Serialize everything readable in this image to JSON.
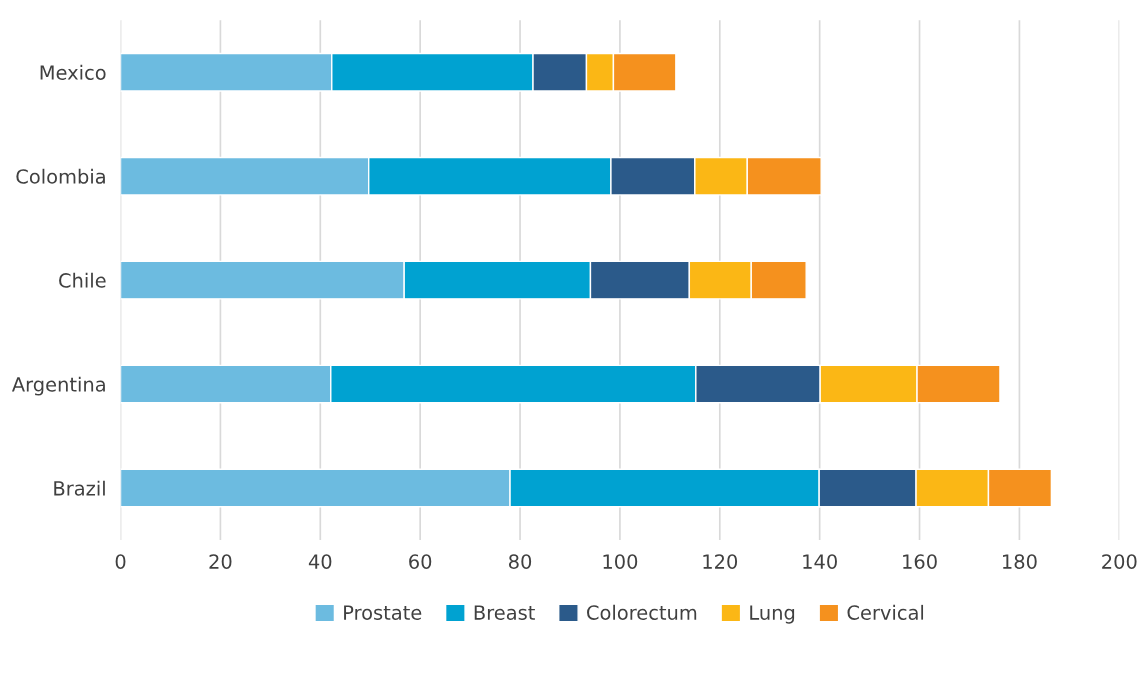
{
  "chart_data": {
    "type": "bar",
    "orientation": "horizontal",
    "stacked": true,
    "categories": [
      "Mexico",
      "Colombia",
      "Chile",
      "Argentina",
      "Brazil"
    ],
    "series": [
      {
        "name": "Prostate",
        "color": "#6cbbe0",
        "values": [
          42.3,
          49.7,
          56.8,
          42.1,
          78.0
        ]
      },
      {
        "name": "Breast",
        "color": "#00a2d1",
        "values": [
          40.3,
          48.5,
          37.3,
          73.1,
          61.9
        ]
      },
      {
        "name": "Colorectum",
        "color": "#2b5a8a",
        "values": [
          10.7,
          16.8,
          19.8,
          24.9,
          19.4
        ]
      },
      {
        "name": "Lung",
        "color": "#fbb715",
        "values": [
          5.4,
          10.5,
          12.4,
          19.4,
          14.5
        ]
      },
      {
        "name": "Cervical",
        "color": "#f5911e",
        "values": [
          12.5,
          14.8,
          11.0,
          16.6,
          12.6
        ]
      }
    ],
    "xlim": [
      0,
      200
    ],
    "xticks": [
      0,
      20,
      40,
      60,
      80,
      100,
      120,
      140,
      160,
      180,
      200
    ],
    "grid": "x",
    "legend": "bottom"
  }
}
